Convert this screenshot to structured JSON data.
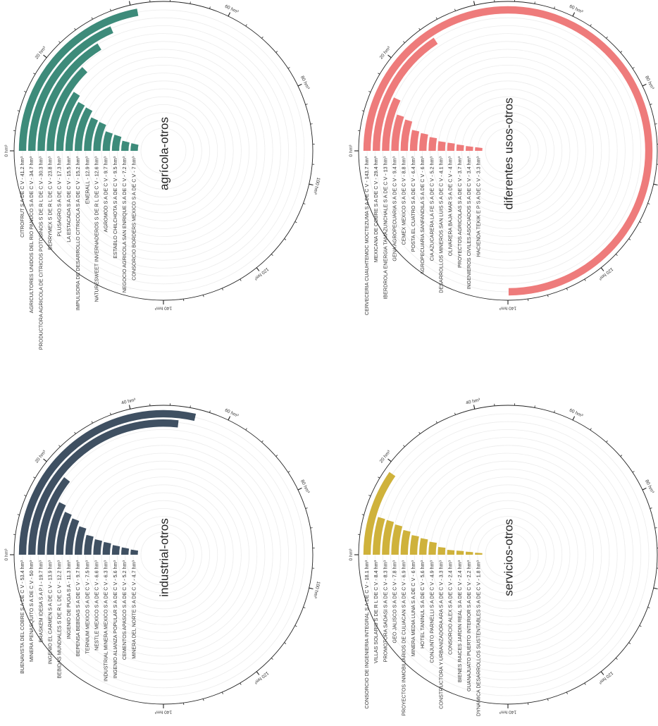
{
  "chart_data": [
    {
      "type": "bar",
      "subtype": "radial-bar",
      "title": "agrícola-otros",
      "color": "#3d8b7a",
      "axis_max": 140,
      "axis_ticks": [
        {
          "value": 0,
          "label": "0 hm³"
        },
        {
          "value": 20,
          "label": "20 hm³"
        },
        {
          "value": 40,
          "label": "40 hm³"
        },
        {
          "value": 60,
          "label": "60 hm³"
        },
        {
          "value": 80,
          "label": "80 hm³"
        },
        {
          "value": 100,
          "label": "100 hm³"
        },
        {
          "value": 120,
          "label": "120 hm³"
        },
        {
          "value": 140,
          "label": "140 hm³"
        }
      ],
      "bars": [
        {
          "name": "CITROFRUT S A DE C V",
          "value": 41.2,
          "label": "CITROFRUT S A DE C V  -  41.2  hm³"
        },
        {
          "name": "AGRICULTORES UNIDOS DEL RIO PANUCO S A DE C V",
          "value": 34.7,
          "label": "AGRICULTORES UNIDOS DEL RIO PANUCO S A DE C V  -  34.7  hm³"
        },
        {
          "name": "PRODUCTORA AGRICOLA DE CITRICOS POTOSINOS S DE R L DE C V",
          "value": 30.3,
          "label": "PRODUCTORA AGRICOLA DE CITRICOS POTOSINOS S DE R L DE C V  -  30.3  hm³"
        },
        {
          "name": "BERRYMEX S DE R L DE C V",
          "value": 23.8,
          "label": "BERRYMEX S DE R L DE C V  -  23.8  hm³"
        },
        {
          "name": "PLUSAGRO S A DE C V",
          "value": 17.3,
          "label": "PLUSAGRO S A DE C V  -  17.3  hm³"
        },
        {
          "name": "LA ESTACADA S A DE C V",
          "value": 15.5,
          "label": "LA ESTACADA S A DE C V  -  15.5  hm³"
        },
        {
          "name": "IMPULSORA DE DESARROLLO CITRICOLA S A DE C V",
          "value": 15.2,
          "label": "IMPULSORA DE DESARROLLO CITRICOLA S A DE C V  -  15.2  hm³"
        },
        {
          "name": "ENERALL",
          "value": 12.9,
          "label": "ENERALL  -  12.9  hm³"
        },
        {
          "name": "NATURESWEET INVERNADEROS S DE R L DE C V",
          "value": 12.6,
          "label": "NATURESWEET INVERNADEROS S DE R L DE C V  -  12.6  hm³"
        },
        {
          "name": "AGROMOD S A DE C V",
          "value": 9.7,
          "label": "AGROMOD S A DE C V  -  9.7  hm³"
        },
        {
          "name": "ESTABLO CHILCHOTA S A DE C V",
          "value": 9.5,
          "label": "ESTABLO CHILCHOTA S A DE C V  -  9.5  hm³"
        },
        {
          "name": "NEGOCIO AGRICOLA SAN ENRIQUE S A DE C V",
          "value": 7.2,
          "label": "NEGOCIO AGRICOLA SAN ENRIQUE S A DE C V  -  7.2  hm³"
        },
        {
          "name": "CONSORCIO BORDERS MEXICO S A DE C V",
          "value": 7.0,
          "label": "CONSORCIO BORDERS MEXICO S A DE C V  -  7  hm³"
        }
      ]
    },
    {
      "type": "bar",
      "subtype": "radial-bar",
      "title": "diferentes usos-otros",
      "color": "#ee7b7b",
      "axis_max": 140,
      "axis_ticks": [
        {
          "value": 0,
          "label": "0 hm³"
        },
        {
          "value": 20,
          "label": "20 hm³"
        },
        {
          "value": 40,
          "label": "40 hm³"
        },
        {
          "value": 60,
          "label": "60 hm³"
        },
        {
          "value": 80,
          "label": "80 hm³"
        },
        {
          "value": 100,
          "label": "100 hm³"
        },
        {
          "value": 120,
          "label": "120 hm³"
        },
        {
          "value": 140,
          "label": "140 hm³"
        }
      ],
      "bars": [
        {
          "name": "CERVECERIA CUAUHTEMOC MOCTEZUMA S A DE C V",
          "value": 143.7,
          "label": "CERVECERIA CUAUHTEMOC MOCTEZUMA S A DE C V  -  143.7  hm³"
        },
        {
          "name": "MEXICANA DE COBRE S A DE C V",
          "value": 29.4,
          "label": "MEXICANA DE COBRE S A DE C V  -  29.4  hm³"
        },
        {
          "name": "IBERDROLA ENERGIA TAMAZUNCHALE S A DE C V",
          "value": 13.0,
          "label": "IBERDROLA ENERGIA TAMAZUNCHALE S A DE C V  -  13  hm³"
        },
        {
          "name": "GENA AGROPECUARIA S A DE C V",
          "value": 9.4,
          "label": "GENA AGROPECUARIA S A DE C V  -  9.4  hm³"
        },
        {
          "name": "CEMEX MEXICO S A DE C V",
          "value": 8.8,
          "label": "CEMEX MEXICO S A DE C V  -  8.8  hm³"
        },
        {
          "name": "POSTA EL CUATRO S A DE C V",
          "value": 6.4,
          "label": "POSTA EL CUATRO S A DE C V  -  6.4  hm³"
        },
        {
          "name": "AGROPECUARIA SANFANDILA S A DE C V",
          "value": 6.0,
          "label": "AGROPECUARIA SANFANDILA S A DE C V  -  6  hm³"
        },
        {
          "name": "CIA AZUCARERA LA FE S A DE C V",
          "value": 5.2,
          "label": "CIA AZUCARERA LA FE S A DE C V  -  5.2  hm³"
        },
        {
          "name": "DESARROLLOS MINEROS SAN LUIS S A DE C V",
          "value": 4.1,
          "label": "DESARROLLOS MINEROS SAN LUIS S A DE C V  -  4.1  hm³"
        },
        {
          "name": "OLIVARERA BAJA MAR S A DE C V",
          "value": 4.0,
          "label": "OLIVARERA BAJA MAR S A DE C V  -  4  hm³"
        },
        {
          "name": "PROYECTOS AGRICOLAS S A DE C V",
          "value": 3.7,
          "label": "PROYECTOS AGRICOLAS S A DE C V  -  3.7  hm³"
        },
        {
          "name": "INGENIEROS CIVILES ASOCIADOS S A DE C V",
          "value": 3.4,
          "label": "INGENIEROS CIVILES ASOCIADOS S A DE C V  -  3.4  hm³"
        },
        {
          "name": "HACIENDA TEKIK E P  S A DE C V",
          "value": 3.3,
          "label": "HACIENDA TEKIK E P  S A DE C V  -  3.3  hm³"
        }
      ]
    },
    {
      "type": "bar",
      "subtype": "radial-bar",
      "title": "industrial-otros",
      "color": "#3f5062",
      "axis_max": 140,
      "axis_ticks": [
        {
          "value": 0,
          "label": "0 hm³"
        },
        {
          "value": 20,
          "label": "20 hm³"
        },
        {
          "value": 40,
          "label": "40 hm³"
        },
        {
          "value": 60,
          "label": "60 hm³"
        },
        {
          "value": 80,
          "label": "80 hm³"
        },
        {
          "value": 100,
          "label": "100 hm³"
        },
        {
          "value": 120,
          "label": "120 hm³"
        },
        {
          "value": 140,
          "label": "140 hm³"
        }
      ],
      "bars": [
        {
          "name": "BUENAVISTA DEL COBRE S A DE C V",
          "value": 53.4,
          "label": "BUENAVISTA DEL COBRE S A DE C V  -  53.4  hm³"
        },
        {
          "name": "MINERA PENASQUITO S A DE C V",
          "value": 50.0,
          "label": "MINERA PENASQUITO S A DE C V  -  50  hm³"
        },
        {
          "name": "BRASKEM IDESA S A P I",
          "value": 19.7,
          "label": "BRASKEM IDESA S A P I  -  19.7  hm³"
        },
        {
          "name": "INGENIO EL CARMEN S A DE C V",
          "value": 13.9,
          "label": "INGENIO EL CARMEN S A DE C V  -  13.9  hm³"
        },
        {
          "name": "BEBIDAS MUNDIALES S DE R L DE C V",
          "value": 12.2,
          "label": "BEBIDAS MUNDIALES S DE R L DE C V  -  12.2  hm³"
        },
        {
          "name": "INGENIO DE PUGA S A",
          "value": 11.3,
          "label": "INGENIO DE PUGA S A  -  11.3  hm³"
        },
        {
          "name": "BEPENSA BEBIDAS S A DE C V",
          "value": 9.7,
          "label": "BEPENSA BEBIDAS S A DE C V  -  9.7  hm³"
        },
        {
          "name": "TERNIUM MEXICO S A DE C V",
          "value": 7.5,
          "label": "TERNIUM MEXICO S A DE C V  -  7.5  hm³"
        },
        {
          "name": "NESTLE MEXICO S A DE C V",
          "value": 6.6,
          "label": "NESTLE MEXICO S A DE C V  -  6.6  hm³"
        },
        {
          "name": "INDUSTRIAL MINERA MEXICO S A DE C V",
          "value": 6.3,
          "label": "INDUSTRIAL MINERA MEXICO S A DE C V  -  6.3  hm³"
        },
        {
          "name": "INGENIO ALIANZA POPULAR S A DE C V",
          "value": 5.6,
          "label": "INGENIO ALIANZA POPULAR S A DE C V  -  5.6  hm³"
        },
        {
          "name": "CEMENTOS APASCO S A DE C V",
          "value": 5.2,
          "label": "CEMENTOS APASCO S A DE C V  -  5.2  hm³"
        },
        {
          "name": "MINERA DEL NORTE S A DE C V",
          "value": 4.7,
          "label": "MINERA DEL NORTE S A DE C V  -  4.7  hm³"
        }
      ]
    },
    {
      "type": "bar",
      "subtype": "radial-bar",
      "title": "servicios-otros",
      "color": "#cfb23b",
      "axis_max": 140,
      "axis_ticks": [
        {
          "value": 0,
          "label": "0 hm³"
        },
        {
          "value": 20,
          "label": "20 hm³"
        },
        {
          "value": 40,
          "label": "40 hm³"
        },
        {
          "value": 60,
          "label": "60 hm³"
        },
        {
          "value": 80,
          "label": "80 hm³"
        },
        {
          "value": 100,
          "label": "100 hm³"
        },
        {
          "value": 120,
          "label": "120 hm³"
        },
        {
          "value": 140,
          "label": "140 hm³"
        }
      ],
      "bars": [
        {
          "name": "CONSORCIO DE INGENIERIA INTEGRAL S A DE C V",
          "value": 18.1,
          "label": "CONSORCIO DE INGENIERIA INTEGRAL S A DE C V  -  18.1  hm³"
        },
        {
          "name": "VILLAS SOLARIS S DE R L DE C V",
          "value": 8.4,
          "label": "VILLAS SOLARIS S DE R L DE C V  -  8.4  hm³"
        },
        {
          "name": "PROMOTORA SADASI S A DE C V",
          "value": 8.3,
          "label": "PROMOTORA SADASI S A DE C V  -  8.3  hm³"
        },
        {
          "name": "GEO JALISCO S A DE C V",
          "value": 7.8,
          "label": "GEO JALISCO S A DE C V  -  7.8  hm³"
        },
        {
          "name": "PROYECTOS INMOBILIARIOS DE CULIACAN S A DE C V",
          "value": 6.9,
          "label": "PROYECTOS INMOBILIARIOS DE CULIACAN S A DE C V  -  6.9  hm³"
        },
        {
          "name": "MINERA MEDIA LUNA S A DE C V",
          "value": 6.0,
          "label": "MINERA MEDIA LUNA S A DE C V  -  6  hm³"
        },
        {
          "name": "HOTEL TANINUL S A DE C V",
          "value": 5.6,
          "label": "HOTEL TANINUL S A DE C V  -  5.6  hm³"
        },
        {
          "name": "CONJUNTO PARNELLI S A DE C V",
          "value": 4.9,
          "label": "CONJUNTO PARNELLI S A DE C V  -  4.9  hm³"
        },
        {
          "name": "CONSTRUCTORA Y URBANIZADORA ARA S A DE C V",
          "value": 3.3,
          "label": "CONSTRUCTORA Y URBANIZADORA ARA S A DE C V  -  3.3  hm³"
        },
        {
          "name": "CONSORCIO ALEX S A DE C V",
          "value": 2.4,
          "label": "CONSORCIO ALEX S A DE C V  -  2.4  hm³"
        },
        {
          "name": "BIENES RAICES JARDIN REAL S A DE C V",
          "value": 2.4,
          "label": "BIENES RAICES JARDIN REAL S A DE C V  -  2.4  hm³"
        },
        {
          "name": "GUANAJUATO PUERTO INTERIOR S A DE C V",
          "value": 2.2,
          "label": "GUANAJUATO PUERTO INTERIOR S A DE C V  -  2.2  hm³"
        },
        {
          "name": "DYNAMICA DESARROLLOS SUSTENTABLES S A DE C V",
          "value": 1.8,
          "label": "DYNAMICA DESARROLLOS SUSTENTABLES S A DE C V  -  1.8  hm³"
        }
      ]
    }
  ]
}
